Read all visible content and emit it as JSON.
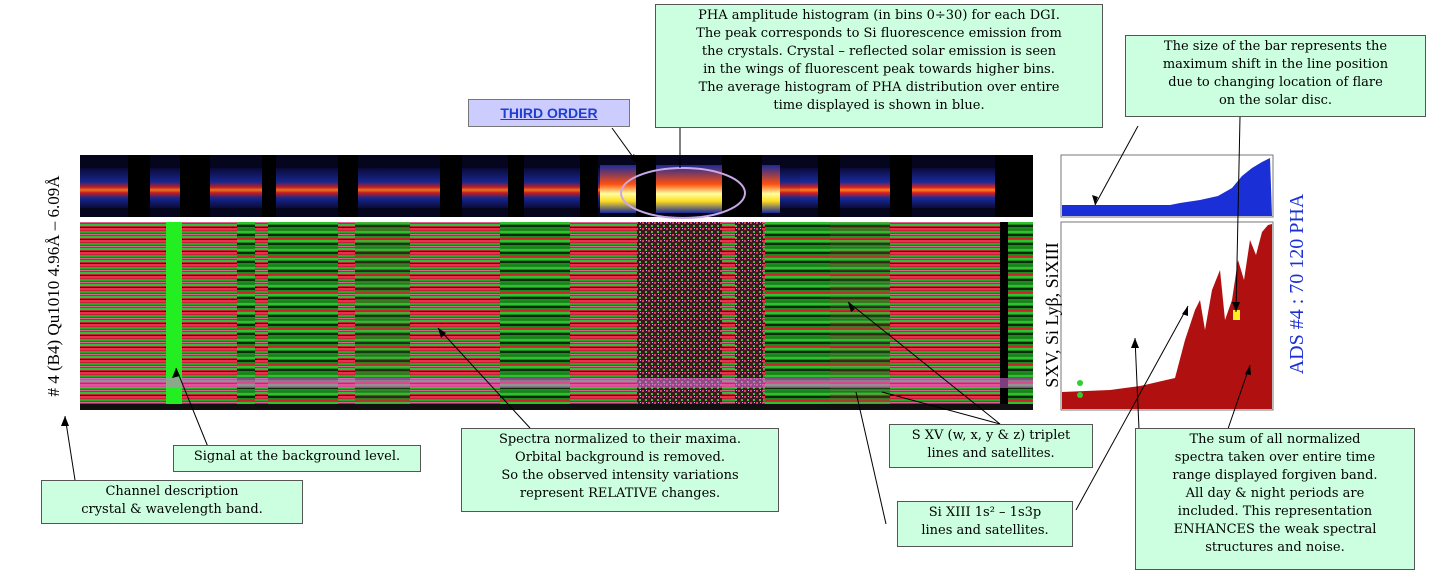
{
  "third_order": "THIRD ORDER",
  "channel_label": "# 4 (B4) Qu1010 4.96Å – 6.09Å",
  "lines_label": "SXV, Si Lyβ, SiXIII",
  "ads_label": "ADS #4 :   70 120  PHA",
  "callouts": {
    "pha": "PHA amplitude histogram (in bins 0÷30) for each DGI.\nThe peak corresponds to Si fluorescence emission from\nthe crystals.  Crystal – reflected solar emission is seen\nin the wings of fluorescent peak towards higher bins.\nThe average histogram of PHA distribution over entire\ntime displayed is shown in blue.",
    "bar_size": "The size of the bar represents the\nmaximum shift in the line position\ndue to changing location of flare\non the solar disc.",
    "signal_bg": "Signal at the background level.",
    "channel_desc": "Channel description\ncrystal & wavelength band.",
    "spectra_norm": "Spectra normalized to their maxima.\nOrbital background is removed.\nSo the observed intensity variations\nrepresent  RELATIVE changes.",
    "sxv": "S XV (w, x, y & z) triplet\nlines and satellites.",
    "sixiii": "Si XIII 1s² – 1s3p\nlines and satellites.",
    "sum": "The sum of all normalized\nspectra taken over entire time\nrange displayed forgiven band.\nAll day & night periods are\nincluded.  This representation\nENHANCES the weak spectral\nstructures and noise."
  },
  "colors": {
    "callout_bg": "#ccffe0",
    "label_bg": "#ccccff",
    "label_text": "#1f3fd0",
    "pha_blue": "#1a2fd6",
    "sum_red": "#b01010",
    "spec_red": "#e0203a",
    "spec_green": "#1fae22"
  }
}
